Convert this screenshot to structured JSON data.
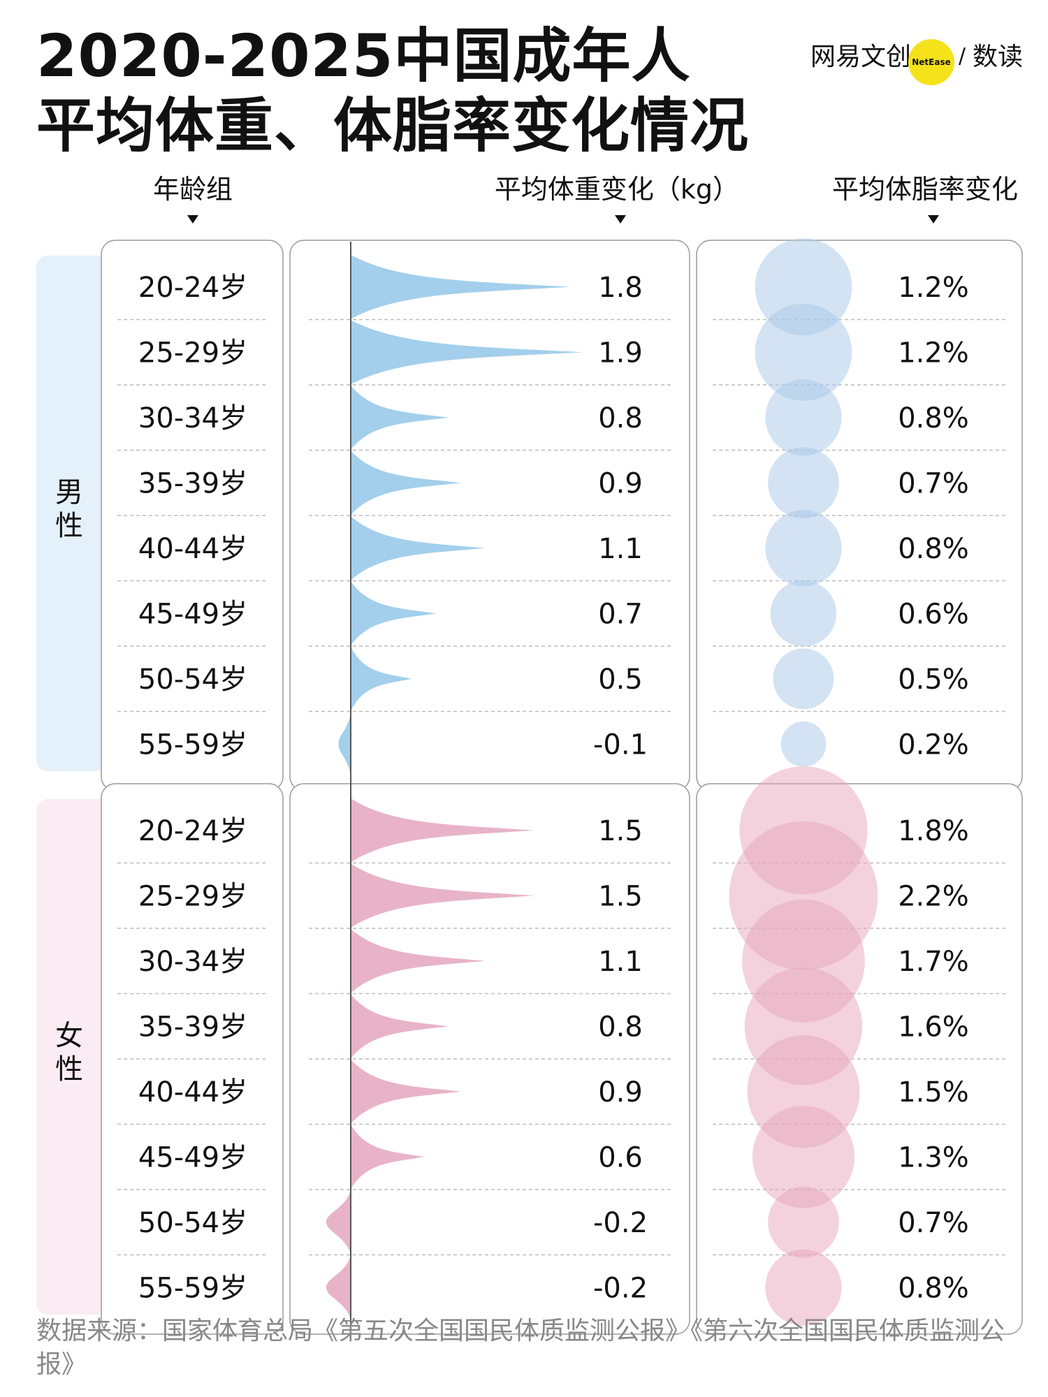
{
  "title": {
    "line1": "2020-2025中国成年人",
    "line2": "平均体重、体脂率变化情况"
  },
  "brand": {
    "name": "网易文创",
    "badge": "NetEase",
    "slash": "/",
    "sub": "数读",
    "badge_color": "#f5e21a"
  },
  "headers": {
    "age": "年龄组",
    "weight": "平均体重变化（kg）",
    "fat": "平均体脂率变化"
  },
  "footer": "数据来源：国家体育总局《第五次全国国民体质监测公报》《第六次全国国民体质监测公报》",
  "chart_data": {
    "type": "table",
    "title": "2020-2025中国成年人平均体重、体脂率变化情况",
    "weight_unit": "kg",
    "fat_unit": "%",
    "groups": [
      {
        "name": "男性",
        "color": "#a3cfec",
        "bubble_color": "#a7c8e8",
        "panel_color": "#e4f1fa",
        "rows": [
          {
            "age": "20-24岁",
            "weight": 1.8,
            "weight_label": "1.8",
            "fat": 1.2,
            "fat_label": "1.2%"
          },
          {
            "age": "25-29岁",
            "weight": 1.9,
            "weight_label": "1.9",
            "fat": 1.2,
            "fat_label": "1.2%"
          },
          {
            "age": "30-34岁",
            "weight": 0.8,
            "weight_label": "0.8",
            "fat": 0.8,
            "fat_label": "0.8%"
          },
          {
            "age": "35-39岁",
            "weight": 0.9,
            "weight_label": "0.9",
            "fat": 0.7,
            "fat_label": "0.7%"
          },
          {
            "age": "40-44岁",
            "weight": 1.1,
            "weight_label": "1.1",
            "fat": 0.8,
            "fat_label": "0.8%"
          },
          {
            "age": "45-49岁",
            "weight": 0.7,
            "weight_label": "0.7",
            "fat": 0.6,
            "fat_label": "0.6%"
          },
          {
            "age": "50-54岁",
            "weight": 0.5,
            "weight_label": "0.5",
            "fat": 0.5,
            "fat_label": "0.5%"
          },
          {
            "age": "55-59岁",
            "weight": -0.1,
            "weight_label": "-0.1",
            "fat": 0.2,
            "fat_label": "0.2%"
          }
        ]
      },
      {
        "name": "女性",
        "color": "#e8b3c9",
        "bubble_color": "#e8a6bc",
        "panel_color": "#faecf2",
        "rows": [
          {
            "age": "20-24岁",
            "weight": 1.5,
            "weight_label": "1.5",
            "fat": 1.8,
            "fat_label": "1.8%"
          },
          {
            "age": "25-29岁",
            "weight": 1.5,
            "weight_label": "1.5",
            "fat": 2.2,
            "fat_label": "2.2%"
          },
          {
            "age": "30-34岁",
            "weight": 1.1,
            "weight_label": "1.1",
            "fat": 1.7,
            "fat_label": "1.7%"
          },
          {
            "age": "35-39岁",
            "weight": 0.8,
            "weight_label": "0.8",
            "fat": 1.6,
            "fat_label": "1.6%"
          },
          {
            "age": "40-44岁",
            "weight": 0.9,
            "weight_label": "0.9",
            "fat": 1.5,
            "fat_label": "1.5%"
          },
          {
            "age": "45-49岁",
            "weight": 0.6,
            "weight_label": "0.6",
            "fat": 1.3,
            "fat_label": "1.3%"
          },
          {
            "age": "50-54岁",
            "weight": -0.2,
            "weight_label": "-0.2",
            "fat": 0.7,
            "fat_label": "0.7%"
          },
          {
            "age": "55-59岁",
            "weight": -0.2,
            "weight_label": "-0.2",
            "fat": 0.8,
            "fat_label": "0.8%"
          }
        ]
      }
    ]
  }
}
